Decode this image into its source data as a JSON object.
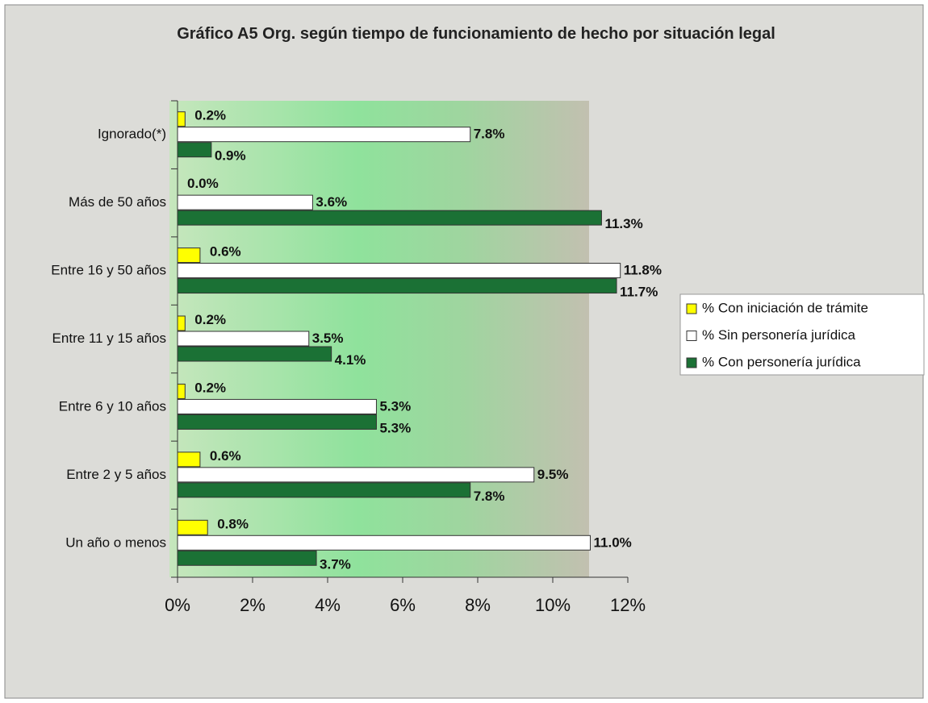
{
  "chart_data": {
    "type": "hbar",
    "title": "Gráfico A5 Org. según tiempo de funcionamiento de hecho por situación legal",
    "categories": [
      "Ignorado(*)",
      "Más de 50 años",
      "Entre 16 y 50 años",
      "Entre 11 y 15 años",
      "Entre 6 y 10 años",
      "Entre 2 y 5 años",
      "Un año o menos"
    ],
    "series": [
      {
        "name": "% Con iniciación de trámite",
        "color": "#ffff00",
        "values": [
          0.2,
          0.0,
          0.6,
          0.2,
          0.2,
          0.6,
          0.8
        ],
        "value_labels": [
          "0.2%",
          "0.0%",
          "0.6%",
          "0.2%",
          "0.2%",
          "0.6%",
          "0.8%"
        ]
      },
      {
        "name": "% Sin personería jurídica",
        "color": "#ffffff",
        "values": [
          7.8,
          3.6,
          11.8,
          3.5,
          5.3,
          9.5,
          11.0
        ],
        "value_labels": [
          "7.8%",
          "3.6%",
          "11.8%",
          "3.5%",
          "5.3%",
          "9.5%",
          "11.0%"
        ]
      },
      {
        "name": "% Con personería jurídica",
        "color": "#1b7135",
        "values": [
          0.9,
          11.3,
          11.7,
          4.1,
          5.3,
          7.8,
          3.7
        ],
        "value_labels": [
          "0.9%",
          "11.3%",
          "11.7%",
          "4.1%",
          "5.3%",
          "7.8%",
          "3.7%"
        ]
      }
    ],
    "xlim": [
      0,
      12
    ],
    "xticks": [
      {
        "value": 0,
        "label": "0%"
      },
      {
        "value": 2,
        "label": "2%"
      },
      {
        "value": 4,
        "label": "4%"
      },
      {
        "value": 6,
        "label": "6%"
      },
      {
        "value": 8,
        "label": "8%"
      },
      {
        "value": 10,
        "label": "10%"
      },
      {
        "value": 12,
        "label": "12%"
      }
    ],
    "legend": "right"
  }
}
